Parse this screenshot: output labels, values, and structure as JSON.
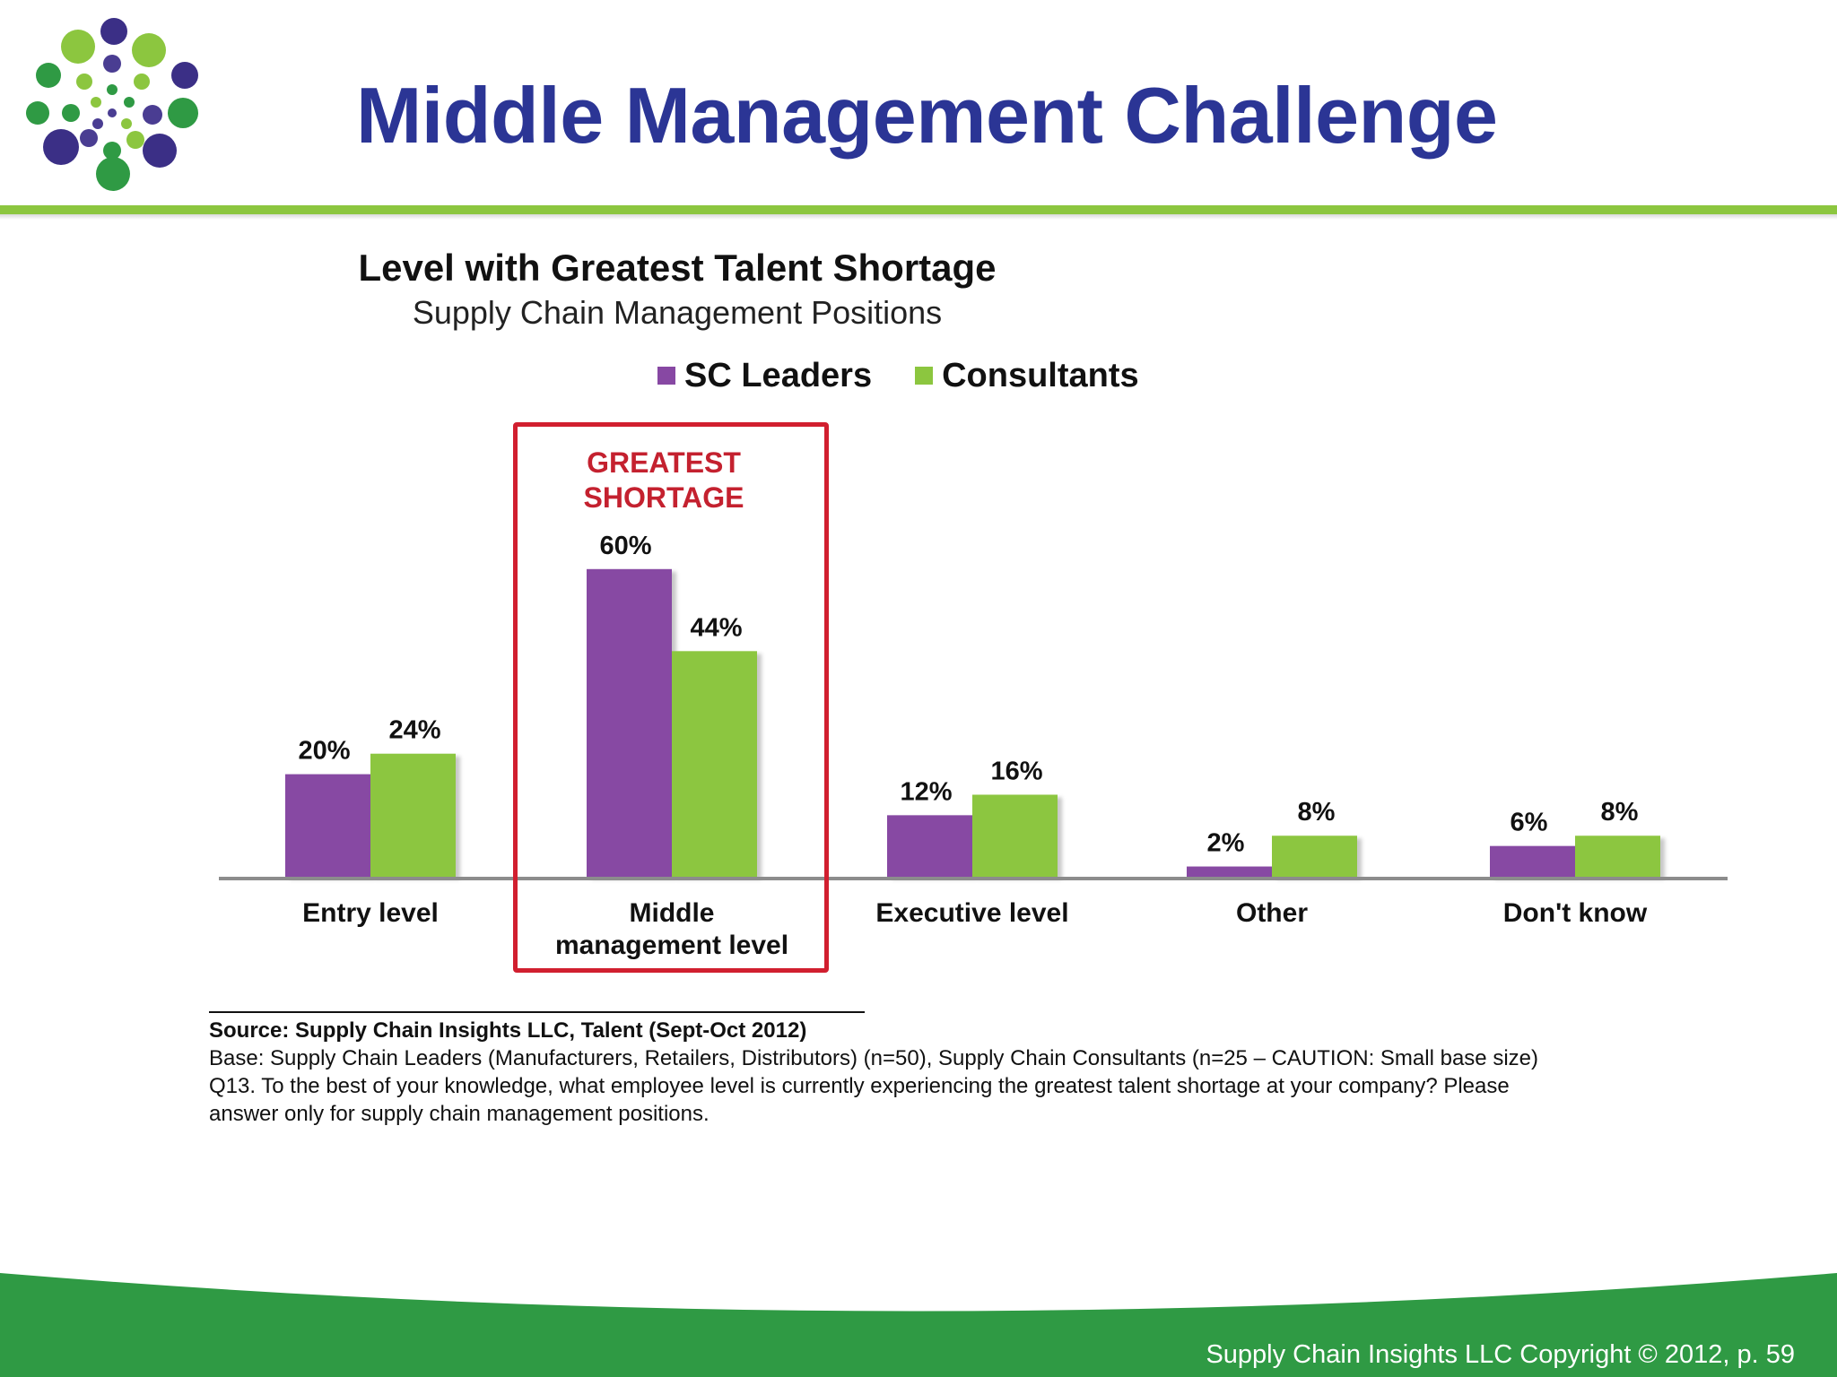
{
  "slide_title": "Middle Management Challenge",
  "colors": {
    "title": "#2b3595",
    "sc_leaders": "#8748a3",
    "consultants": "#8cc63f",
    "highlight": "#d11f2f",
    "footer_green": "#2f9a44"
  },
  "chart_data": {
    "type": "bar",
    "title": "Level with Greatest Talent Shortage",
    "subtitle": "Supply Chain Management Positions",
    "categories": [
      "Entry level",
      "Middle management level",
      "Executive level",
      "Other",
      "Don't know"
    ],
    "category_lines": [
      [
        "Entry level"
      ],
      [
        "Middle",
        "management level"
      ],
      [
        "Executive level"
      ],
      [
        "Other"
      ],
      [
        "Don't know"
      ]
    ],
    "series": [
      {
        "name": "SC Leaders",
        "values": [
          20,
          60,
          12,
          2,
          6
        ],
        "labels": [
          "20%",
          "60%",
          "12%",
          "2%",
          "6%"
        ]
      },
      {
        "name": "Consultants",
        "values": [
          24,
          44,
          16,
          8,
          8
        ],
        "labels": [
          "24%",
          "44%",
          "16%",
          "8%",
          "8%"
        ]
      }
    ],
    "unit": "%",
    "ylim": [
      0,
      60
    ],
    "grid": false,
    "legend_position": "top-center",
    "annotation": {
      "category": "Middle management level",
      "lines": [
        "GREATEST",
        "SHORTAGE"
      ]
    }
  },
  "source": {
    "line1": "Source:  Supply Chain Insights LLC, Talent (Sept-Oct 2012)",
    "line2": "Base:  Supply Chain Leaders (Manufacturers, Retailers, Distributors) (n=50), Supply Chain Consultants (n=25 – CAUTION: Small base size)",
    "line3": "Q13. To the best of your knowledge, what employee level is currently experiencing the greatest talent shortage at your company?  Please",
    "line4": "answer only for supply chain management positions."
  },
  "footer": "Supply Chain Insights LLC Copyright © 2012, p. 59"
}
